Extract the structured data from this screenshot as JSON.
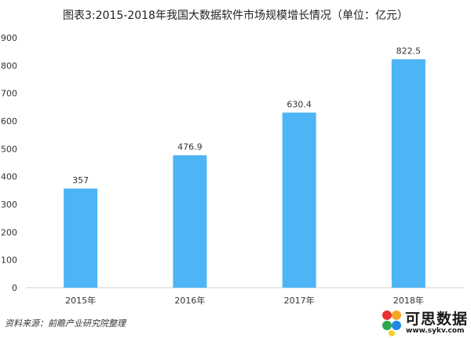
{
  "title": "图表3:2015-2018年我国大数据软件市场规模增长情况（单位：亿元）",
  "source": "资料来源：前瞻产业研究院整理",
  "logo": {
    "text": "可思数据",
    "url": "www.sykv.com"
  },
  "colors": {
    "bar": "#4db5f5",
    "axis": "#d0d0d0",
    "text": "#333333"
  },
  "chart_data": {
    "type": "bar",
    "title": "图表3:2015-2018年我国大数据软件市场规模增长情况（单位：亿元）",
    "categories": [
      "2015年",
      "2016年",
      "2017年",
      "2018年"
    ],
    "values": [
      357,
      476.9,
      630.4,
      822.5
    ],
    "value_labels": [
      "357",
      "476.9",
      "630.4",
      "822.5"
    ],
    "yticks": [
      0,
      100,
      200,
      300,
      400,
      500,
      600,
      700,
      800,
      900
    ],
    "ylim": [
      0,
      900
    ],
    "xlabel": "",
    "ylabel": "",
    "grid": false,
    "legend": "none"
  }
}
